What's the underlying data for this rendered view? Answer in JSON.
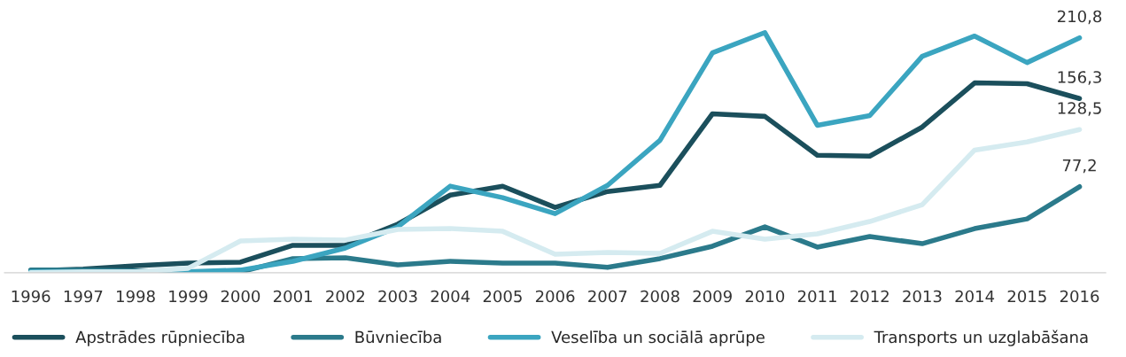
{
  "chart_data": {
    "type": "line",
    "categories": [
      "1996",
      "1997",
      "1998",
      "1999",
      "2000",
      "2001",
      "2002",
      "2003",
      "2004",
      "2005",
      "2006",
      "2007",
      "2008",
      "2009",
      "2010",
      "2011",
      "2012",
      "2013",
      "2014",
      "2015",
      "2016"
    ],
    "tick_labels": "x",
    "grid": false,
    "legend": "bottom",
    "marker": "none",
    "line_style": "solid",
    "series": [
      {
        "name": "Apstrādes rūpniecība",
        "color": "#1b4f5c",
        "values": [
          1.6,
          3.2,
          6.3,
          8.7,
          9.5,
          24.6,
          24.6,
          43.6,
          69.7,
          77.6,
          58.6,
          72.9,
          78.4,
          142.6,
          140.3,
          105.4,
          104.6,
          130.7,
          170.4,
          169.6,
          156.3
        ],
        "value_labels": [
          null,
          null,
          null,
          null,
          null,
          null,
          null,
          null,
          null,
          null,
          null,
          null,
          null,
          null,
          null,
          null,
          null,
          null,
          null,
          null,
          "156,3"
        ]
      },
      {
        "name": "Būvniecība",
        "color": "#2b7a8b",
        "values": [
          2.4,
          2.4,
          1.6,
          0.8,
          0.8,
          12.7,
          13.5,
          7.1,
          10.3,
          8.7,
          8.7,
          4.8,
          12.7,
          23.8,
          41.2,
          23.0,
          32.5,
          26.1,
          39.6,
          48.3,
          77.2
        ],
        "value_labels": [
          null,
          null,
          null,
          null,
          null,
          null,
          null,
          null,
          null,
          null,
          null,
          null,
          null,
          null,
          null,
          null,
          null,
          null,
          null,
          null,
          "77,2"
        ]
      },
      {
        "name": "Veselība un sociālā aprūpe",
        "color": "#3ba5c0",
        "values": [
          0.8,
          0.8,
          0,
          0.8,
          2.4,
          10.3,
          22.2,
          41.2,
          77.7,
          67.4,
          53.1,
          78.4,
          118.9,
          197.3,
          215.5,
          132.3,
          141.0,
          194.1,
          212.4,
          188.6,
          210.8
        ],
        "value_labels": [
          null,
          null,
          null,
          null,
          null,
          null,
          null,
          null,
          null,
          null,
          null,
          null,
          null,
          null,
          null,
          null,
          null,
          null,
          null,
          null,
          "210,8"
        ]
      },
      {
        "name": "Transports un uzglabāšana",
        "color": "#d5ebf0",
        "values": [
          0,
          0.8,
          0.8,
          4.0,
          28.5,
          30.1,
          29.3,
          38.8,
          39.6,
          37.2,
          16.6,
          18.2,
          17.4,
          37.2,
          30.1,
          34.9,
          46.0,
          61.0,
          110.1,
          117.3,
          128.5
        ],
        "value_labels": [
          null,
          null,
          null,
          null,
          null,
          null,
          null,
          null,
          null,
          null,
          null,
          null,
          null,
          null,
          null,
          null,
          null,
          null,
          null,
          null,
          "128,5"
        ]
      }
    ]
  }
}
